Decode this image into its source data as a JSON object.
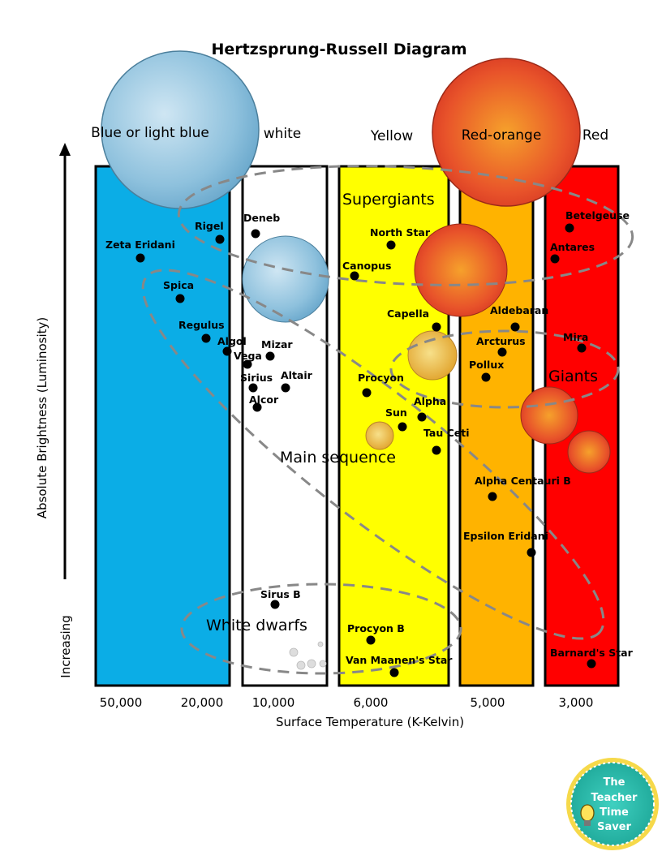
{
  "title": "Hertzsprung-Russell Diagram",
  "color_bands": [
    "Blue or light blue",
    "white",
    "Yellow",
    "Red-orange",
    "Red"
  ],
  "x_axis": {
    "label": "Surface Temperature (K-Kelvin)",
    "ticks": [
      "50,000",
      "20,000",
      "10,000",
      "6,000",
      "5,000",
      "3,000"
    ]
  },
  "y_axis": {
    "label": "Absolute Brightness (Luminosity)",
    "direction_label": "Increasing"
  },
  "regions": {
    "supergiants": "Supergiants",
    "giants": "Giants",
    "main_sequence": "Main sequence",
    "white_dwarfs": "White dwarfs"
  },
  "stars": [
    "Rigel",
    "Deneb",
    "Zeta Eridani",
    "Spica",
    "Regulus",
    "Algol",
    "Mizar",
    "Vega",
    "Sirius",
    "Altair",
    "Alcor",
    "North Star",
    "Canopus",
    "Capella",
    "Procyon",
    "Sun",
    "Alpha",
    "Tau Ceti",
    "Betelgeuse",
    "Antares",
    "Aldebaran",
    "Arcturus",
    "Pollux",
    "Mira",
    "Alpha Centauri B",
    "Epsilon Eridani",
    "Sirus B",
    "Procyon B",
    "Van Maanen's Star",
    "Barnard's Star"
  ],
  "badge": {
    "line1": "The",
    "line2": "Teacher",
    "line3": "Time",
    "line4": "Saver"
  },
  "colors": {
    "blue": "#0BADE6",
    "white": "#FFFFFF",
    "yellow": "#FFFF00",
    "orange": "#FFB300",
    "red": "#FF0000",
    "badge": "#2EC4B6"
  }
}
